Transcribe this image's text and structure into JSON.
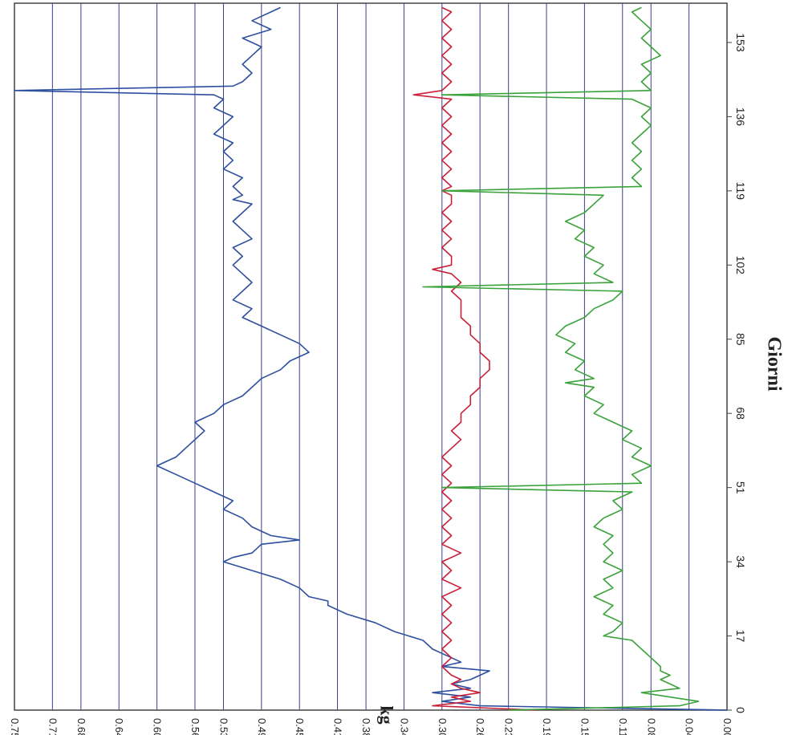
{
  "chart_data": {
    "type": "line",
    "orientation": "rotated-90-cw",
    "title": "",
    "xlabel": "Giorni",
    "ylabel": "kg",
    "x_ticks": [
      "0",
      "17",
      "34",
      "51",
      "68",
      "85",
      "102",
      "119",
      "136",
      "153"
    ],
    "y_ticks": [
      "0.00",
      "0.04",
      "0.08",
      "0.11",
      "0.15",
      "0.19",
      "0.23",
      "0.26",
      "0.30",
      "0.34",
      "0.38",
      "0.41",
      "0.45",
      "0.49",
      "0.53",
      "0.56",
      "0.60",
      "0.64",
      "0.68",
      "0.71",
      "0.75"
    ],
    "xlim": [
      0,
      162
    ],
    "ylim": [
      0,
      0.75
    ],
    "grid": "horizontal",
    "series": [
      {
        "color": "#2d4fa0",
        "x": [
          0,
          1,
          2,
          3,
          4,
          5,
          6,
          7,
          8,
          9,
          10,
          11,
          12,
          13,
          14,
          16,
          18,
          20,
          22,
          24,
          25,
          26,
          28,
          30,
          32,
          34,
          35,
          36,
          38,
          39,
          40,
          42,
          44,
          46,
          48,
          50,
          52,
          54,
          56,
          57,
          58,
          60,
          62,
          64,
          66,
          68,
          70,
          72,
          74,
          76,
          78,
          80,
          82,
          84,
          86,
          88,
          90,
          92,
          94,
          96,
          98,
          100,
          102,
          104,
          106,
          108,
          110,
          112,
          114,
          116,
          117,
          118,
          120,
          122,
          124,
          126,
          128,
          130,
          132,
          134,
          136,
          138,
          140,
          141,
          142,
          143,
          144,
          146,
          148,
          150,
          152,
          154,
          156,
          158,
          159,
          160,
          161
        ],
        "y": [
          0.0,
          0.26,
          0.3,
          0.27,
          0.31,
          0.27,
          0.29,
          0.27,
          0.26,
          0.25,
          0.3,
          0.28,
          0.29,
          0.3,
          0.31,
          0.32,
          0.35,
          0.37,
          0.4,
          0.42,
          0.42,
          0.44,
          0.45,
          0.47,
          0.5,
          0.53,
          0.52,
          0.5,
          0.49,
          0.45,
          0.48,
          0.5,
          0.51,
          0.53,
          0.52,
          0.54,
          0.56,
          0.58,
          0.6,
          0.59,
          0.58,
          0.57,
          0.56,
          0.55,
          0.56,
          0.54,
          0.53,
          0.51,
          0.5,
          0.49,
          0.47,
          0.46,
          0.44,
          0.45,
          0.47,
          0.49,
          0.51,
          0.5,
          0.52,
          0.51,
          0.5,
          0.51,
          0.52,
          0.51,
          0.52,
          0.5,
          0.51,
          0.52,
          0.51,
          0.5,
          0.52,
          0.51,
          0.52,
          0.51,
          0.53,
          0.52,
          0.53,
          0.52,
          0.54,
          0.53,
          0.52,
          0.54,
          0.53,
          0.54,
          0.75,
          0.52,
          0.51,
          0.5,
          0.51,
          0.5,
          0.49,
          0.51,
          0.48,
          0.5,
          0.49,
          0.48,
          0.47
        ]
      },
      {
        "color": "#c8203a",
        "x": [
          0,
          1,
          2,
          3,
          4,
          5,
          6,
          7,
          8,
          10,
          12,
          14,
          16,
          18,
          20,
          22,
          24,
          26,
          28,
          30,
          32,
          34,
          36,
          38,
          40,
          42,
          44,
          46,
          48,
          50,
          52,
          54,
          56,
          58,
          60,
          62,
          64,
          66,
          68,
          70,
          72,
          74,
          76,
          78,
          80,
          82,
          84,
          86,
          88,
          90,
          92,
          94,
          96,
          98,
          100,
          101,
          102,
          104,
          106,
          108,
          110,
          112,
          114,
          116,
          118,
          119,
          120,
          122,
          124,
          126,
          128,
          130,
          132,
          134,
          136,
          138,
          140,
          141,
          142,
          144,
          146,
          148,
          150,
          152,
          154,
          156,
          158,
          160,
          161
        ],
        "y": [
          0.2,
          0.31,
          0.27,
          0.29,
          0.26,
          0.28,
          0.29,
          0.28,
          0.29,
          0.3,
          0.29,
          0.3,
          0.29,
          0.3,
          0.29,
          0.3,
          0.29,
          0.3,
          0.28,
          0.3,
          0.29,
          0.3,
          0.28,
          0.3,
          0.29,
          0.3,
          0.29,
          0.3,
          0.29,
          0.3,
          0.29,
          0.3,
          0.29,
          0.3,
          0.29,
          0.28,
          0.29,
          0.28,
          0.28,
          0.27,
          0.27,
          0.26,
          0.26,
          0.25,
          0.25,
          0.26,
          0.26,
          0.27,
          0.27,
          0.28,
          0.28,
          0.28,
          0.29,
          0.28,
          0.29,
          0.31,
          0.29,
          0.29,
          0.3,
          0.29,
          0.3,
          0.29,
          0.3,
          0.29,
          0.29,
          0.3,
          0.29,
          0.3,
          0.29,
          0.3,
          0.29,
          0.3,
          0.29,
          0.3,
          0.29,
          0.3,
          0.29,
          0.33,
          0.3,
          0.29,
          0.3,
          0.29,
          0.3,
          0.29,
          0.3,
          0.29,
          0.3,
          0.29,
          0.3
        ]
      },
      {
        "color": "#3aa23a",
        "x": [
          0,
          1,
          2,
          3,
          4,
          5,
          6,
          7,
          8,
          9,
          10,
          12,
          14,
          16,
          17,
          18,
          20,
          22,
          24,
          26,
          28,
          30,
          32,
          34,
          36,
          38,
          40,
          42,
          44,
          46,
          48,
          50,
          51,
          52,
          54,
          56,
          58,
          60,
          62,
          64,
          66,
          68,
          70,
          72,
          74,
          75,
          76,
          78,
          80,
          82,
          84,
          86,
          88,
          90,
          92,
          94,
          96,
          97,
          98,
          100,
          102,
          104,
          106,
          108,
          110,
          112,
          114,
          116,
          118,
          119,
          120,
          122,
          124,
          126,
          128,
          130,
          132,
          134,
          136,
          138,
          140,
          141,
          142,
          144,
          146,
          148,
          150,
          152,
          154,
          156,
          158,
          160,
          161
        ],
        "y": [
          0.23,
          0.05,
          0.03,
          0.06,
          0.09,
          0.05,
          0.06,
          0.07,
          0.06,
          0.07,
          0.07,
          0.08,
          0.09,
          0.1,
          0.13,
          0.12,
          0.11,
          0.13,
          0.12,
          0.14,
          0.12,
          0.13,
          0.11,
          0.13,
          0.12,
          0.13,
          0.12,
          0.14,
          0.13,
          0.11,
          0.12,
          0.1,
          0.3,
          0.09,
          0.1,
          0.08,
          0.1,
          0.09,
          0.11,
          0.1,
          0.12,
          0.14,
          0.13,
          0.15,
          0.14,
          0.17,
          0.14,
          0.16,
          0.15,
          0.17,
          0.16,
          0.18,
          0.17,
          0.15,
          0.14,
          0.12,
          0.11,
          0.32,
          0.12,
          0.14,
          0.13,
          0.15,
          0.14,
          0.16,
          0.15,
          0.17,
          0.15,
          0.14,
          0.13,
          0.3,
          0.09,
          0.1,
          0.09,
          0.1,
          0.09,
          0.1,
          0.09,
          0.08,
          0.09,
          0.08,
          0.1,
          0.3,
          0.08,
          0.09,
          0.08,
          0.09,
          0.07,
          0.08,
          0.09,
          0.08,
          0.09,
          0.1,
          0.09
        ]
      }
    ]
  }
}
